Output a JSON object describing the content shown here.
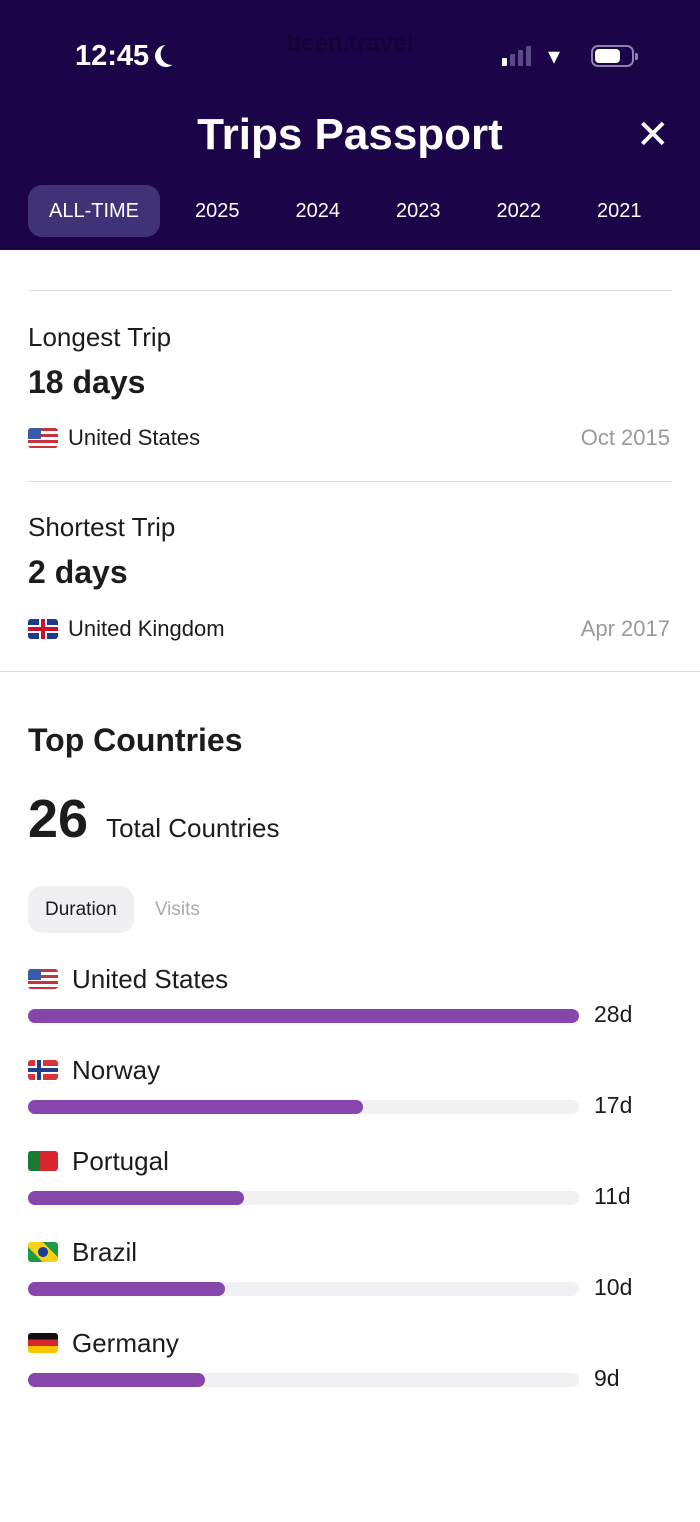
{
  "status_bar": {
    "time": "12:45",
    "watermark": "been.travel"
  },
  "header": {
    "title": "Trips Passport",
    "close_icon": "close-icon",
    "background": "#1b0548"
  },
  "tabs": [
    {
      "label": "ALL-TIME",
      "active": true
    },
    {
      "label": "2025"
    },
    {
      "label": "2024"
    },
    {
      "label": "2023"
    },
    {
      "label": "2022"
    },
    {
      "label": "2021"
    }
  ],
  "longest": {
    "label": "Longest Trip",
    "value": "18 days",
    "country": "United States",
    "flag": "us",
    "date": "Oct 2015"
  },
  "shortest": {
    "label": "Shortest Trip",
    "value": "2 days",
    "country": "United Kingdom",
    "flag": "gb",
    "date": "Apr 2017"
  },
  "top": {
    "title": "Top Countries",
    "total": "26",
    "total_label": "Total Countries",
    "toggle": [
      {
        "label": "Duration",
        "active": true
      },
      {
        "label": "Visits"
      }
    ],
    "accent": "#8646ab",
    "countries": [
      {
        "name": "United States",
        "flag": "us",
        "value": "28d",
        "days": 28
      },
      {
        "name": "Norway",
        "flag": "no",
        "value": "17d",
        "days": 17
      },
      {
        "name": "Portugal",
        "flag": "pt",
        "value": "11d",
        "days": 11
      },
      {
        "name": "Brazil",
        "flag": "br",
        "value": "10d",
        "days": 10
      },
      {
        "name": "Germany",
        "flag": "de",
        "value": "9d",
        "days": 9
      }
    ]
  }
}
